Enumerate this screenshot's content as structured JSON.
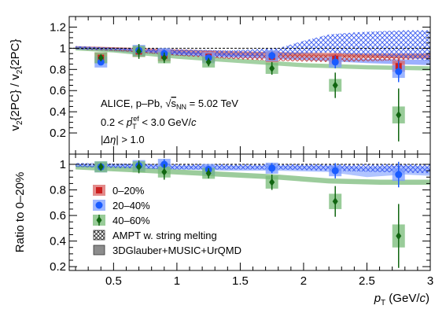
{
  "chart_data": [
    {
      "type": "scatter",
      "panel": "top",
      "ylabel": "v₂{2PC} / v₂{2PC}",
      "ylim": [
        0.0,
        1.3
      ],
      "xlim": [
        0.15,
        3.0
      ],
      "yticks": [
        0.2,
        0.4,
        0.6,
        0.8,
        1.0,
        1.2
      ],
      "ytick_labels": [
        "0.2",
        "0.4",
        "0.6",
        "0.8",
        "1",
        "1.2"
      ],
      "reference_line": 1.0,
      "annotations": [
        {
          "text": "ALICE, p–Pb, √s_NN = 5.02 TeV",
          "parts": [
            "ALICE, p–Pb, ",
            "√",
            "s",
            "NN",
            " = 5.02 TeV"
          ]
        },
        {
          "text": "0.2 < p_T^ref < 3.0 GeV/c",
          "parts": [
            "0.2 < ",
            "p",
            "T",
            "ref",
            " < 3.0 GeV/",
            "c"
          ]
        },
        {
          "text": "|Δη| > 1.0",
          "parts": [
            "|",
            "Δη",
            "| > 1.0"
          ]
        }
      ],
      "series": [
        {
          "name": "0–20%",
          "marker": "square",
          "color": "#cc1f1f",
          "boxcolor": "#d96464",
          "x": [
            0.4,
            0.7,
            0.9,
            1.25,
            1.75,
            2.25,
            2.75
          ],
          "y": [
            0.91,
            0.97,
            0.93,
            0.92,
            0.92,
            0.9,
            0.83
          ],
          "err": [
            0.02,
            0.03,
            0.03,
            0.02,
            0.03,
            0.04,
            0.06
          ],
          "syst": [
            0.03,
            0.03,
            0.03,
            0.03,
            0.03,
            0.04,
            0.05
          ]
        },
        {
          "name": "20–40%",
          "marker": "circle",
          "color": "#1a5cff",
          "boxcolor": "#7b9cff",
          "x": [
            0.4,
            0.7,
            0.9,
            1.25,
            1.75,
            2.25,
            2.75
          ],
          "y": [
            0.87,
            0.98,
            0.95,
            0.91,
            0.93,
            0.87,
            0.78
          ],
          "err": [
            0.02,
            0.03,
            0.04,
            0.03,
            0.04,
            0.06,
            0.1
          ],
          "syst": [
            0.04,
            0.04,
            0.04,
            0.04,
            0.04,
            0.05,
            0.06
          ]
        },
        {
          "name": "40–60%",
          "marker": "diamond",
          "color": "#116611",
          "boxcolor": "#77bb77",
          "x": [
            0.4,
            0.7,
            0.9,
            1.25,
            1.75,
            2.25,
            2.75
          ],
          "y": [
            0.91,
            0.97,
            0.91,
            0.87,
            0.81,
            0.65,
            0.37
          ],
          "err": [
            0.03,
            0.07,
            0.05,
            0.04,
            0.06,
            0.12,
            0.25
          ],
          "syst": [
            0.03,
            0.04,
            0.04,
            0.04,
            0.05,
            0.06,
            0.08
          ]
        }
      ],
      "bands": [
        {
          "kind": "hydro",
          "centrality": "0–20%",
          "color": "#c0403c",
          "x": [
            0.2,
            0.5,
            1.0,
            1.5,
            2.0,
            2.5,
            3.0
          ],
          "low": [
            0.99,
            0.98,
            0.95,
            0.93,
            0.92,
            0.91,
            0.9
          ],
          "high": [
            1.02,
            1.01,
            0.99,
            0.97,
            0.96,
            0.95,
            0.95
          ]
        },
        {
          "kind": "hydro",
          "centrality": "20–40%",
          "color": "#5a7cff",
          "x": [
            0.2,
            0.5,
            1.0,
            1.5,
            2.0,
            2.5,
            3.0
          ],
          "low": [
            0.99,
            0.97,
            0.93,
            0.91,
            0.89,
            0.86,
            0.84
          ],
          "high": [
            1.02,
            1.0,
            0.97,
            0.94,
            0.92,
            0.9,
            0.89
          ]
        },
        {
          "kind": "hydro",
          "centrality": "40–60%",
          "color": "#66b266",
          "x": [
            0.2,
            0.5,
            1.0,
            1.5,
            2.0,
            2.5,
            3.0
          ],
          "low": [
            0.98,
            0.96,
            0.9,
            0.86,
            0.82,
            0.8,
            0.79
          ],
          "high": [
            1.01,
            0.99,
            0.94,
            0.9,
            0.86,
            0.84,
            0.83
          ]
        },
        {
          "kind": "ampt",
          "centrality": "0–20%",
          "color": "#c03030",
          "x": [
            0.2,
            0.6,
            1.0,
            1.4,
            1.8,
            2.2,
            2.6,
            3.0
          ],
          "low": [
            0.99,
            0.97,
            0.93,
            0.9,
            0.88,
            0.87,
            0.88,
            0.9
          ],
          "high": [
            1.02,
            1.0,
            0.98,
            0.96,
            0.95,
            0.94,
            0.94,
            0.94
          ]
        },
        {
          "kind": "ampt",
          "centrality": "20–40%",
          "color": "#3355ee",
          "x": [
            0.2,
            0.6,
            1.0,
            1.4,
            1.8,
            2.0,
            2.2,
            2.4,
            2.6,
            2.8,
            3.0
          ],
          "low": [
            0.99,
            0.98,
            0.94,
            0.92,
            0.93,
            0.95,
            0.96,
            0.94,
            0.93,
            0.91,
            0.88
          ],
          "high": [
            1.02,
            1.0,
            0.99,
            0.98,
            1.0,
            1.07,
            1.13,
            1.15,
            1.16,
            1.17,
            1.17
          ]
        }
      ]
    },
    {
      "type": "scatter",
      "panel": "bottom",
      "ylabel": "Ratio to 0–20%",
      "xlabel": "p_T (GeV/c)",
      "xlabel_parts": [
        "p",
        "T",
        " (GeV/",
        "c",
        ")"
      ],
      "ylim": [
        0.17,
        1.08
      ],
      "xlim": [
        0.15,
        3.0
      ],
      "xticks": [
        0.5,
        1.0,
        1.5,
        2.0,
        2.5,
        3.0
      ],
      "xtick_labels": [
        "0.5",
        "1",
        "1.5",
        "2",
        "2.5",
        "3"
      ],
      "yticks": [
        0.2,
        0.4,
        0.6,
        0.8,
        1.0
      ],
      "ytick_labels": [
        "0.2",
        "0.4",
        "0.6",
        "0.8",
        "1"
      ],
      "reference_line": 1.0,
      "legend": [
        {
          "label": "0–20%",
          "marker": "square",
          "color": "#cc1f1f",
          "boxcolor": "#d96464"
        },
        {
          "label": "20–40%",
          "marker": "circle",
          "color": "#1a5cff",
          "boxcolor": "#7b9cff"
        },
        {
          "label": "40–60%",
          "marker": "diamond",
          "color": "#116611",
          "boxcolor": "#77bb77"
        },
        {
          "label": "AMPT w. string melting",
          "marker": "hatch",
          "color": "#333333"
        },
        {
          "label": "3DGlauber+MUSIC+UrQMD",
          "marker": "filled-box",
          "color": "#8c8c8c"
        }
      ],
      "series": [
        {
          "name": "20–40%",
          "marker": "circle",
          "color": "#1a5cff",
          "boxcolor": "#7b9cff",
          "x": [
            0.4,
            0.7,
            0.9,
            1.25,
            1.75,
            2.25,
            2.75
          ],
          "y": [
            0.98,
            0.99,
            1.0,
            0.96,
            0.97,
            0.95,
            0.92
          ],
          "err": [
            0.02,
            0.03,
            0.04,
            0.03,
            0.04,
            0.06,
            0.1
          ],
          "syst": [
            0.03,
            0.03,
            0.03,
            0.03,
            0.03,
            0.04,
            0.05
          ]
        },
        {
          "name": "40–60%",
          "marker": "diamond",
          "color": "#116611",
          "boxcolor": "#77bb77",
          "x": [
            0.4,
            0.7,
            0.9,
            1.25,
            1.75,
            2.25,
            2.75
          ],
          "y": [
            0.98,
            0.98,
            0.94,
            0.93,
            0.86,
            0.71,
            0.44
          ],
          "err": [
            0.03,
            0.05,
            0.06,
            0.04,
            0.06,
            0.12,
            0.25
          ],
          "syst": [
            0.03,
            0.04,
            0.04,
            0.04,
            0.05,
            0.06,
            0.09
          ]
        }
      ],
      "bands": [
        {
          "kind": "hydro",
          "centrality": "20–40%",
          "color": "#7b9cff",
          "x": [
            0.2,
            0.6,
            1.0,
            1.4,
            1.8,
            2.2,
            2.5,
            2.8,
            3.0
          ],
          "low": [
            0.98,
            0.97,
            0.96,
            0.95,
            0.95,
            0.94,
            0.9,
            0.92,
            0.91
          ],
          "high": [
            1.0,
            1.0,
            0.99,
            0.99,
            0.99,
            0.99,
            0.98,
            0.99,
            0.98
          ]
        },
        {
          "kind": "hydro",
          "centrality": "40–60%",
          "color": "#5aaa5a",
          "x": [
            0.2,
            0.6,
            1.0,
            1.4,
            1.8,
            2.2,
            2.6,
            3.0
          ],
          "low": [
            0.96,
            0.94,
            0.92,
            0.9,
            0.88,
            0.85,
            0.84,
            0.84
          ],
          "high": [
            0.99,
            0.98,
            0.96,
            0.94,
            0.92,
            0.89,
            0.88,
            0.88
          ]
        },
        {
          "kind": "ampt",
          "centrality": "20–40%",
          "color": "#3355ee",
          "x": [
            0.2,
            1.0,
            1.8,
            2.2,
            2.6,
            3.0
          ],
          "low": [
            0.98,
            0.96,
            0.96,
            0.95,
            0.94,
            0.93
          ],
          "high": [
            1.01,
            1.0,
            1.0,
            1.0,
            1.0,
            1.0
          ]
        }
      ]
    }
  ]
}
